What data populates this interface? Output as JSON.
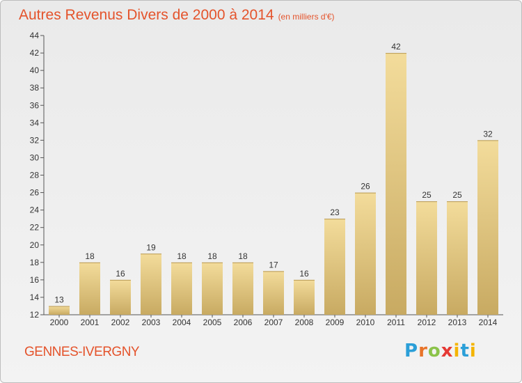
{
  "header": {
    "title": "Autres Revenus Divers de 2000 à 2014",
    "subtitle": "(en milliers d'€)"
  },
  "footer": {
    "town": "GENNES-IVERGNY",
    "logo_text": "Proxiti"
  },
  "colors": {
    "accent": "#e4532b",
    "bar_light": "#f3dc9b",
    "bar_dark": "#c8aa62"
  },
  "chart_data": {
    "type": "bar",
    "categories": [
      "2000",
      "2001",
      "2002",
      "2003",
      "2004",
      "2005",
      "2006",
      "2007",
      "2008",
      "2009",
      "2010",
      "2011",
      "2012",
      "2013",
      "2014"
    ],
    "values": [
      13,
      18,
      16,
      19,
      18,
      18,
      18,
      17,
      16,
      23,
      26,
      42,
      25,
      25,
      32
    ],
    "title": "Autres Revenus Divers de 2000 à 2014",
    "subtitle": "(en milliers d'€)",
    "ylim": [
      12,
      44
    ],
    "yticks": [
      12,
      14,
      16,
      18,
      20,
      22,
      24,
      26,
      28,
      30,
      32,
      34,
      36,
      38,
      40,
      42,
      44
    ],
    "grid": false,
    "data_labels": true
  }
}
